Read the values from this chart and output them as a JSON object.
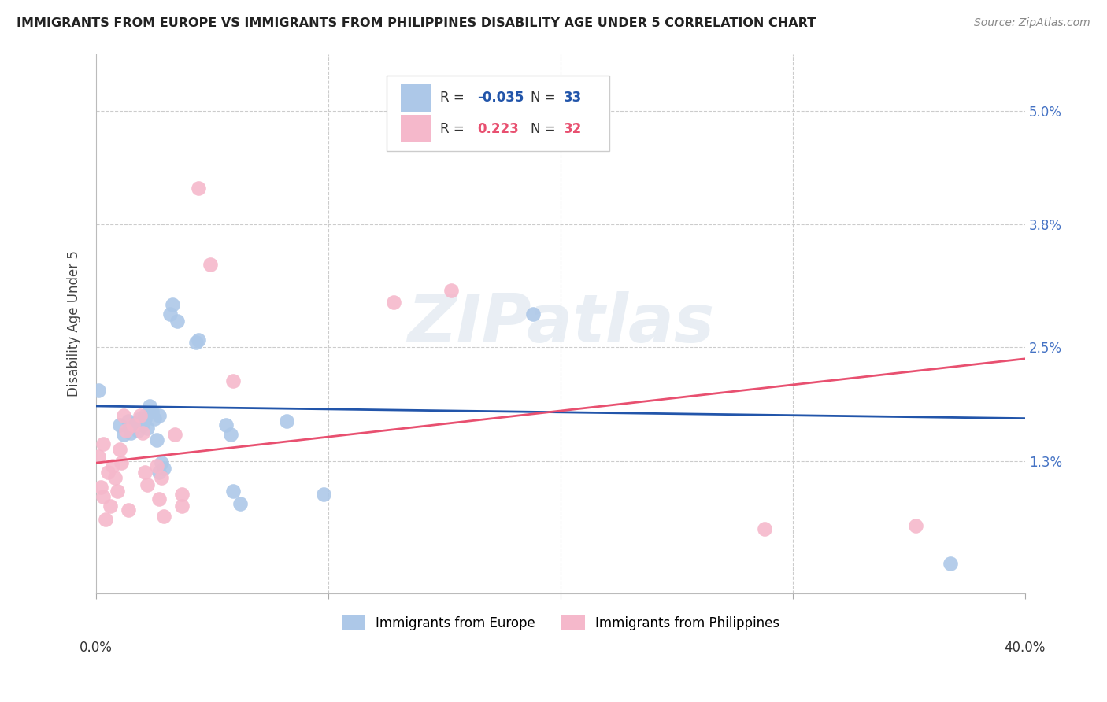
{
  "title": "IMMIGRANTS FROM EUROPE VS IMMIGRANTS FROM PHILIPPINES DISABILITY AGE UNDER 5 CORRELATION CHART",
  "source": "Source: ZipAtlas.com",
  "ylabel": "Disability Age Under 5",
  "xlim": [
    0.0,
    0.4
  ],
  "ylim": [
    -0.001,
    0.056
  ],
  "yticks": [
    0.0,
    0.013,
    0.025,
    0.038,
    0.05
  ],
  "ytick_labels": [
    "",
    "1.3%",
    "2.5%",
    "3.8%",
    "5.0%"
  ],
  "blue_color": "#adc8e8",
  "pink_color": "#f5b8cb",
  "blue_line_color": "#2255aa",
  "pink_line_color": "#e85070",
  "watermark_text": "ZIPatlas",
  "legend_label_blue": "Immigrants from Europe",
  "legend_label_pink": "Immigrants from Philippines",
  "blue_scatter": [
    [
      0.001,
      0.0205
    ],
    [
      0.01,
      0.0168
    ],
    [
      0.012,
      0.0158
    ],
    [
      0.014,
      0.0172
    ],
    [
      0.015,
      0.016
    ],
    [
      0.017,
      0.017
    ],
    [
      0.018,
      0.0162
    ],
    [
      0.019,
      0.0175
    ],
    [
      0.02,
      0.0168
    ],
    [
      0.021,
      0.0178
    ],
    [
      0.021,
      0.0175
    ],
    [
      0.022,
      0.0165
    ],
    [
      0.023,
      0.0188
    ],
    [
      0.024,
      0.0182
    ],
    [
      0.025,
      0.0175
    ],
    [
      0.026,
      0.0152
    ],
    [
      0.027,
      0.0178
    ],
    [
      0.027,
      0.0118
    ],
    [
      0.028,
      0.0128
    ],
    [
      0.029,
      0.0122
    ],
    [
      0.032,
      0.0285
    ],
    [
      0.033,
      0.0295
    ],
    [
      0.035,
      0.0278
    ],
    [
      0.043,
      0.0255
    ],
    [
      0.044,
      0.0258
    ],
    [
      0.056,
      0.0168
    ],
    [
      0.058,
      0.0158
    ],
    [
      0.059,
      0.0098
    ],
    [
      0.062,
      0.0085
    ],
    [
      0.082,
      0.0172
    ],
    [
      0.098,
      0.0095
    ],
    [
      0.188,
      0.0285
    ],
    [
      0.368,
      0.0022
    ]
  ],
  "pink_scatter": [
    [
      0.001,
      0.0135
    ],
    [
      0.002,
      0.0102
    ],
    [
      0.003,
      0.0148
    ],
    [
      0.003,
      0.0092
    ],
    [
      0.004,
      0.0068
    ],
    [
      0.005,
      0.0118
    ],
    [
      0.006,
      0.0082
    ],
    [
      0.007,
      0.0125
    ],
    [
      0.008,
      0.0112
    ],
    [
      0.009,
      0.0098
    ],
    [
      0.01,
      0.0142
    ],
    [
      0.011,
      0.0128
    ],
    [
      0.012,
      0.0178
    ],
    [
      0.013,
      0.0162
    ],
    [
      0.014,
      0.0078
    ],
    [
      0.016,
      0.0168
    ],
    [
      0.019,
      0.0178
    ],
    [
      0.02,
      0.016
    ],
    [
      0.021,
      0.0118
    ],
    [
      0.022,
      0.0105
    ],
    [
      0.026,
      0.0125
    ],
    [
      0.027,
      0.009
    ],
    [
      0.028,
      0.0112
    ],
    [
      0.029,
      0.0072
    ],
    [
      0.034,
      0.0158
    ],
    [
      0.037,
      0.0095
    ],
    [
      0.037,
      0.0082
    ],
    [
      0.044,
      0.0418
    ],
    [
      0.049,
      0.0338
    ],
    [
      0.059,
      0.0215
    ],
    [
      0.128,
      0.0298
    ],
    [
      0.153,
      0.031
    ],
    [
      0.288,
      0.0058
    ],
    [
      0.353,
      0.0062
    ]
  ]
}
